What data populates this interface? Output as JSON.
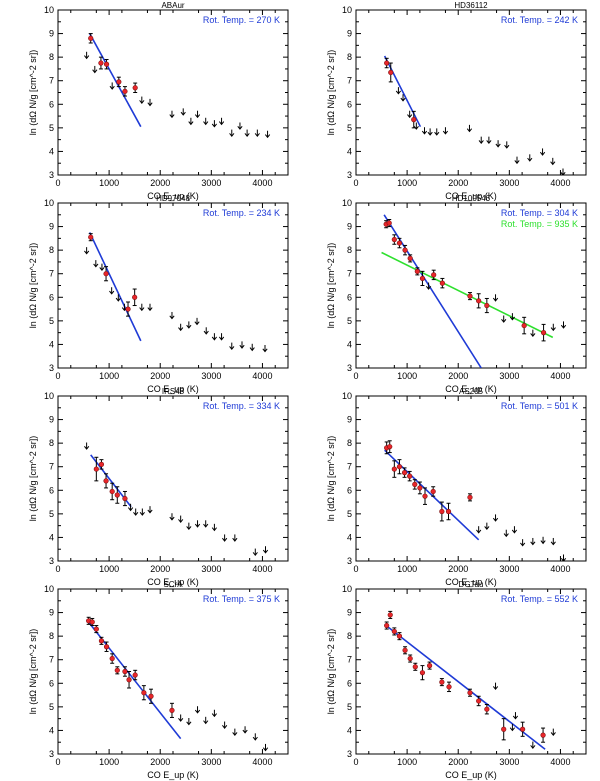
{
  "chart_data": [
    {
      "type": "scatter",
      "title": "ABAur",
      "xlabel": "CO E_up (K)",
      "ylabel": "ln (dΩ N/g [cm^-2 sr])",
      "xlim": [
        0,
        4500
      ],
      "ylim": [
        3,
        10
      ],
      "xticks": [
        0,
        1000,
        2000,
        3000,
        4000
      ],
      "yticks": [
        3,
        4,
        5,
        6,
        7,
        8,
        9,
        10
      ],
      "fits": [
        {
          "label": "Rot. Temp. = 270 K",
          "color": "#1f3bd6",
          "x": [
            620,
            1620
          ],
          "y": [
            9.0,
            5.05
          ]
        }
      ],
      "detections": [
        {
          "x": 640,
          "y": 8.8,
          "err": 0.2
        },
        {
          "x": 840,
          "y": 7.75,
          "err": 0.25
        },
        {
          "x": 950,
          "y": 7.7,
          "err": 0.2
        },
        {
          "x": 1190,
          "y": 6.95,
          "err": 0.2
        },
        {
          "x": 1310,
          "y": 6.55,
          "err": 0.2
        },
        {
          "x": 1510,
          "y": 6.7,
          "err": 0.2
        }
      ],
      "upper_limits": [
        {
          "x": 560,
          "y": 8.1
        },
        {
          "x": 720,
          "y": 7.5
        },
        {
          "x": 1060,
          "y": 6.8
        },
        {
          "x": 1640,
          "y": 6.2
        },
        {
          "x": 1800,
          "y": 6.1
        },
        {
          "x": 2230,
          "y": 5.6
        },
        {
          "x": 2450,
          "y": 5.7
        },
        {
          "x": 2600,
          "y": 5.3
        },
        {
          "x": 2730,
          "y": 5.6
        },
        {
          "x": 2890,
          "y": 5.3
        },
        {
          "x": 3060,
          "y": 5.2
        },
        {
          "x": 3200,
          "y": 5.3
        },
        {
          "x": 3400,
          "y": 4.8
        },
        {
          "x": 3560,
          "y": 5.1
        },
        {
          "x": 3700,
          "y": 4.8
        },
        {
          "x": 3900,
          "y": 4.8
        },
        {
          "x": 4100,
          "y": 4.75
        }
      ]
    },
    {
      "type": "scatter",
      "title": "HD36112",
      "xlabel": "CO E_up (K)",
      "ylabel": "ln (dΩ N/g [cm^-2 sr])",
      "xlim": [
        0,
        4500
      ],
      "ylim": [
        3,
        10
      ],
      "xticks": [
        0,
        1000,
        2000,
        3000,
        4000
      ],
      "yticks": [
        3,
        4,
        5,
        6,
        7,
        8,
        9,
        10
      ],
      "fits": [
        {
          "label": "Rot. Temp. = 242 K",
          "color": "#1f3bd6",
          "x": [
            560,
            1260
          ],
          "y": [
            8.05,
            5.05
          ]
        }
      ],
      "detections": [
        {
          "x": 600,
          "y": 7.75,
          "err": 0.2
        },
        {
          "x": 680,
          "y": 7.35,
          "err": 0.4
        },
        {
          "x": 1130,
          "y": 5.35,
          "err": 0.35
        }
      ],
      "upper_limits": [
        {
          "x": 830,
          "y": 6.6
        },
        {
          "x": 920,
          "y": 6.3
        },
        {
          "x": 1050,
          "y": 5.6
        },
        {
          "x": 1180,
          "y": 5.1
        },
        {
          "x": 1340,
          "y": 4.9
        },
        {
          "x": 1450,
          "y": 4.85
        },
        {
          "x": 1580,
          "y": 4.85
        },
        {
          "x": 1750,
          "y": 4.9
        },
        {
          "x": 2220,
          "y": 5.0
        },
        {
          "x": 2450,
          "y": 4.5
        },
        {
          "x": 2600,
          "y": 4.5
        },
        {
          "x": 2780,
          "y": 4.35
        },
        {
          "x": 2950,
          "y": 4.3
        },
        {
          "x": 3150,
          "y": 3.65
        },
        {
          "x": 3400,
          "y": 3.75
        },
        {
          "x": 3650,
          "y": 4.0
        },
        {
          "x": 3850,
          "y": 3.6
        },
        {
          "x": 4050,
          "y": 3.15
        }
      ]
    },
    {
      "type": "scatter",
      "title": "HD97048",
      "xlabel": "CO E_up (K)",
      "ylabel": "ln (dΩ N/g [cm^-2 sr])",
      "xlim": [
        0,
        4500
      ],
      "ylim": [
        3,
        10
      ],
      "xticks": [
        0,
        1000,
        2000,
        3000,
        4000
      ],
      "yticks": [
        3,
        4,
        5,
        6,
        7,
        8,
        9,
        10
      ],
      "fits": [
        {
          "label": "Rot. Temp. = 234 K",
          "color": "#1f3bd6",
          "x": [
            620,
            1620
          ],
          "y": [
            8.75,
            4.15
          ]
        }
      ],
      "detections": [
        {
          "x": 640,
          "y": 8.55,
          "err": 0.15
        },
        {
          "x": 940,
          "y": 7.0,
          "err": 0.3
        },
        {
          "x": 1370,
          "y": 5.5,
          "err": 0.3
        },
        {
          "x": 1500,
          "y": 6.0,
          "err": 0.35
        }
      ],
      "upper_limits": [
        {
          "x": 560,
          "y": 8.0
        },
        {
          "x": 740,
          "y": 7.45
        },
        {
          "x": 860,
          "y": 7.3
        },
        {
          "x": 1050,
          "y": 6.3
        },
        {
          "x": 1180,
          "y": 6.0
        },
        {
          "x": 1300,
          "y": 5.6
        },
        {
          "x": 1640,
          "y": 5.6
        },
        {
          "x": 1800,
          "y": 5.6
        },
        {
          "x": 2230,
          "y": 5.25
        },
        {
          "x": 2400,
          "y": 4.75
        },
        {
          "x": 2560,
          "y": 4.85
        },
        {
          "x": 2720,
          "y": 5.0
        },
        {
          "x": 2900,
          "y": 4.6
        },
        {
          "x": 3060,
          "y": 4.35
        },
        {
          "x": 3200,
          "y": 4.35
        },
        {
          "x": 3400,
          "y": 3.95
        },
        {
          "x": 3600,
          "y": 4.0
        },
        {
          "x": 3800,
          "y": 3.9
        },
        {
          "x": 4050,
          "y": 3.85
        }
      ]
    },
    {
      "type": "scatter",
      "title": "HD100546",
      "xlabel": "CO E_up (K)",
      "ylabel": "ln (dΩ N/g [cm^-2 sr])",
      "xlim": [
        0,
        4500
      ],
      "ylim": [
        3,
        10
      ],
      "xticks": [
        0,
        1000,
        2000,
        3000,
        4000
      ],
      "yticks": [
        3,
        4,
        5,
        6,
        7,
        8,
        9,
        10
      ],
      "fits": [
        {
          "label": "Rot. Temp. = 304 K",
          "color": "#1f3bd6",
          "x": [
            550,
            2450
          ],
          "y": [
            9.5,
            3.0
          ]
        },
        {
          "label": "Rot. Temp. = 935 K",
          "color": "#2ee02e",
          "x": [
            500,
            3850
          ],
          "y": [
            7.9,
            4.3
          ]
        }
      ],
      "detections": [
        {
          "x": 590,
          "y": 9.1,
          "err": 0.15
        },
        {
          "x": 650,
          "y": 9.15,
          "err": 0.15
        },
        {
          "x": 750,
          "y": 8.45,
          "err": 0.2
        },
        {
          "x": 850,
          "y": 8.3,
          "err": 0.2
        },
        {
          "x": 960,
          "y": 8.0,
          "err": 0.2
        },
        {
          "x": 1060,
          "y": 7.65,
          "err": 0.15
        },
        {
          "x": 1200,
          "y": 7.1,
          "err": 0.15
        },
        {
          "x": 1300,
          "y": 6.8,
          "err": 0.3
        },
        {
          "x": 1520,
          "y": 6.95,
          "err": 0.2
        },
        {
          "x": 1690,
          "y": 6.6,
          "err": 0.2
        },
        {
          "x": 2230,
          "y": 6.05,
          "err": 0.15
        },
        {
          "x": 2400,
          "y": 5.85,
          "err": 0.3
        },
        {
          "x": 2560,
          "y": 5.65,
          "err": 0.3
        },
        {
          "x": 3290,
          "y": 4.8,
          "err": 0.35
        },
        {
          "x": 3670,
          "y": 4.5,
          "err": 0.35
        }
      ],
      "upper_limits": [
        {
          "x": 1420,
          "y": 6.5
        },
        {
          "x": 2730,
          "y": 6.0
        },
        {
          "x": 2890,
          "y": 5.1
        },
        {
          "x": 3060,
          "y": 5.2
        },
        {
          "x": 3460,
          "y": 4.5
        },
        {
          "x": 3860,
          "y": 4.75
        },
        {
          "x": 4060,
          "y": 4.85
        }
      ]
    },
    {
      "type": "scatter",
      "title": "IRS48",
      "xlabel": "CO E_up (K)",
      "ylabel": "ln (dΩ N/g [cm^-2 sr])",
      "xlim": [
        0,
        4500
      ],
      "ylim": [
        3,
        10
      ],
      "xticks": [
        0,
        1000,
        2000,
        3000,
        4000
      ],
      "yticks": [
        3,
        4,
        5,
        6,
        7,
        8,
        9,
        10
      ],
      "fits": [
        {
          "label": "Rot. Temp. = 334 K",
          "color": "#1f3bd6",
          "x": [
            640,
            1430
          ],
          "y": [
            7.5,
            5.3
          ]
        }
      ],
      "detections": [
        {
          "x": 750,
          "y": 6.9,
          "err": 0.5
        },
        {
          "x": 850,
          "y": 7.1,
          "err": 0.2
        },
        {
          "x": 940,
          "y": 6.4,
          "err": 0.3
        },
        {
          "x": 1060,
          "y": 5.95,
          "err": 0.35
        },
        {
          "x": 1160,
          "y": 5.8,
          "err": 0.35
        },
        {
          "x": 1310,
          "y": 5.65,
          "err": 0.3
        }
      ],
      "upper_limits": [
        {
          "x": 560,
          "y": 7.9
        },
        {
          "x": 1420,
          "y": 5.3
        },
        {
          "x": 1520,
          "y": 5.1
        },
        {
          "x": 1650,
          "y": 5.1
        },
        {
          "x": 1800,
          "y": 5.2
        },
        {
          "x": 2230,
          "y": 4.9
        },
        {
          "x": 2400,
          "y": 4.8
        },
        {
          "x": 2560,
          "y": 4.5
        },
        {
          "x": 2730,
          "y": 4.6
        },
        {
          "x": 2890,
          "y": 4.6
        },
        {
          "x": 3060,
          "y": 4.45
        },
        {
          "x": 3260,
          "y": 4.0
        },
        {
          "x": 3460,
          "y": 4.0
        },
        {
          "x": 3860,
          "y": 3.4
        },
        {
          "x": 4060,
          "y": 3.5
        }
      ]
    },
    {
      "type": "scatter",
      "title": "AS205",
      "xlabel": "CO E_up (K)",
      "ylabel": "ln (dΩ N/g [cm^-2 sr])",
      "xlim": [
        0,
        4500
      ],
      "ylim": [
        3,
        10
      ],
      "xticks": [
        0,
        1000,
        2000,
        3000,
        4000
      ],
      "yticks": [
        3,
        4,
        5,
        6,
        7,
        8,
        9,
        10
      ],
      "fits": [
        {
          "label": "Rot. Temp. = 501 K",
          "color": "#1f3bd6",
          "x": [
            560,
            2400
          ],
          "y": [
            7.7,
            3.9
          ]
        }
      ],
      "detections": [
        {
          "x": 600,
          "y": 7.8,
          "err": 0.25
        },
        {
          "x": 660,
          "y": 7.85,
          "err": 0.25
        },
        {
          "x": 750,
          "y": 6.9,
          "err": 0.35
        },
        {
          "x": 850,
          "y": 7.0,
          "err": 0.3
        },
        {
          "x": 950,
          "y": 6.75,
          "err": 0.2
        },
        {
          "x": 1050,
          "y": 6.6,
          "err": 0.2
        },
        {
          "x": 1150,
          "y": 6.25,
          "err": 0.2
        },
        {
          "x": 1250,
          "y": 6.1,
          "err": 0.25
        },
        {
          "x": 1350,
          "y": 5.75,
          "err": 0.35
        },
        {
          "x": 1510,
          "y": 5.95,
          "err": 0.2
        },
        {
          "x": 1680,
          "y": 5.1,
          "err": 0.4
        },
        {
          "x": 1810,
          "y": 5.1,
          "err": 0.35
        },
        {
          "x": 2230,
          "y": 5.7,
          "err": 0.15
        }
      ],
      "upper_limits": [
        {
          "x": 2400,
          "y": 4.35
        },
        {
          "x": 2560,
          "y": 4.5
        },
        {
          "x": 2730,
          "y": 4.85
        },
        {
          "x": 2940,
          "y": 4.2
        },
        {
          "x": 3100,
          "y": 4.35
        },
        {
          "x": 3260,
          "y": 3.8
        },
        {
          "x": 3460,
          "y": 3.85
        },
        {
          "x": 3660,
          "y": 3.9
        },
        {
          "x": 3860,
          "y": 3.85
        },
        {
          "x": 4060,
          "y": 3.15
        }
      ]
    },
    {
      "type": "scatter",
      "title": "SCrA",
      "xlabel": "CO E_up (K)",
      "ylabel": "ln (dΩ N/g [cm^-2 sr])",
      "xlim": [
        0,
        4500
      ],
      "ylim": [
        3,
        10
      ],
      "xticks": [
        0,
        1000,
        2000,
        3000,
        4000
      ],
      "yticks": [
        3,
        4,
        5,
        6,
        7,
        8,
        9,
        10
      ],
      "fits": [
        {
          "label": "Rot. Temp. = 375 K",
          "color": "#1f3bd6",
          "x": [
            560,
            2400
          ],
          "y": [
            8.7,
            3.65
          ]
        }
      ],
      "detections": [
        {
          "x": 600,
          "y": 8.65,
          "err": 0.15
        },
        {
          "x": 670,
          "y": 8.6,
          "err": 0.15
        },
        {
          "x": 750,
          "y": 8.3,
          "err": 0.15
        },
        {
          "x": 850,
          "y": 7.8,
          "err": 0.15
        },
        {
          "x": 950,
          "y": 7.55,
          "err": 0.2
        },
        {
          "x": 1060,
          "y": 7.05,
          "err": 0.2
        },
        {
          "x": 1160,
          "y": 6.55,
          "err": 0.15
        },
        {
          "x": 1310,
          "y": 6.5,
          "err": 0.2
        },
        {
          "x": 1390,
          "y": 6.15,
          "err": 0.35
        },
        {
          "x": 1510,
          "y": 6.35,
          "err": 0.2
        },
        {
          "x": 1680,
          "y": 5.6,
          "err": 0.3
        },
        {
          "x": 1820,
          "y": 5.45,
          "err": 0.3
        },
        {
          "x": 2230,
          "y": 4.85,
          "err": 0.3
        }
      ],
      "upper_limits": [
        {
          "x": 2400,
          "y": 4.55
        },
        {
          "x": 2560,
          "y": 4.4
        },
        {
          "x": 2730,
          "y": 4.9
        },
        {
          "x": 2890,
          "y": 4.45
        },
        {
          "x": 3060,
          "y": 4.75
        },
        {
          "x": 3260,
          "y": 4.25
        },
        {
          "x": 3460,
          "y": 3.95
        },
        {
          "x": 3660,
          "y": 4.05
        },
        {
          "x": 3860,
          "y": 3.75
        },
        {
          "x": 4060,
          "y": 3.3
        }
      ]
    },
    {
      "type": "scatter",
      "title": "DGTau",
      "xlabel": "CO E_up (K)",
      "ylabel": "ln (dΩ N/g [cm^-2 sr])",
      "xlim": [
        0,
        4500
      ],
      "ylim": [
        3,
        10
      ],
      "xticks": [
        0,
        1000,
        2000,
        3000,
        4000
      ],
      "yticks": [
        3,
        4,
        5,
        6,
        7,
        8,
        9,
        10
      ],
      "fits": [
        {
          "label": "Rot. Temp. = 552 K",
          "color": "#1f3bd6",
          "x": [
            560,
            3700
          ],
          "y": [
            8.5,
            3.2
          ]
        }
      ],
      "detections": [
        {
          "x": 600,
          "y": 8.45,
          "err": 0.15
        },
        {
          "x": 670,
          "y": 8.9,
          "err": 0.15
        },
        {
          "x": 750,
          "y": 8.2,
          "err": 0.15
        },
        {
          "x": 850,
          "y": 8.0,
          "err": 0.15
        },
        {
          "x": 960,
          "y": 7.4,
          "err": 0.15
        },
        {
          "x": 1060,
          "y": 7.05,
          "err": 0.15
        },
        {
          "x": 1160,
          "y": 6.7,
          "err": 0.15
        },
        {
          "x": 1300,
          "y": 6.45,
          "err": 0.3
        },
        {
          "x": 1440,
          "y": 6.75,
          "err": 0.15
        },
        {
          "x": 1680,
          "y": 6.05,
          "err": 0.15
        },
        {
          "x": 1820,
          "y": 5.85,
          "err": 0.2
        },
        {
          "x": 2230,
          "y": 5.6,
          "err": 0.15
        },
        {
          "x": 2400,
          "y": 5.25,
          "err": 0.2
        },
        {
          "x": 2560,
          "y": 4.9,
          "err": 0.2
        },
        {
          "x": 2890,
          "y": 4.05,
          "err": 0.45
        },
        {
          "x": 3260,
          "y": 4.05,
          "err": 0.3
        },
        {
          "x": 3660,
          "y": 3.8,
          "err": 0.3
        }
      ],
      "upper_limits": [
        {
          "x": 2730,
          "y": 5.9
        },
        {
          "x": 3060,
          "y": 4.15
        },
        {
          "x": 3120,
          "y": 4.65
        },
        {
          "x": 3460,
          "y": 3.4
        },
        {
          "x": 3860,
          "y": 3.95
        }
      ]
    }
  ]
}
